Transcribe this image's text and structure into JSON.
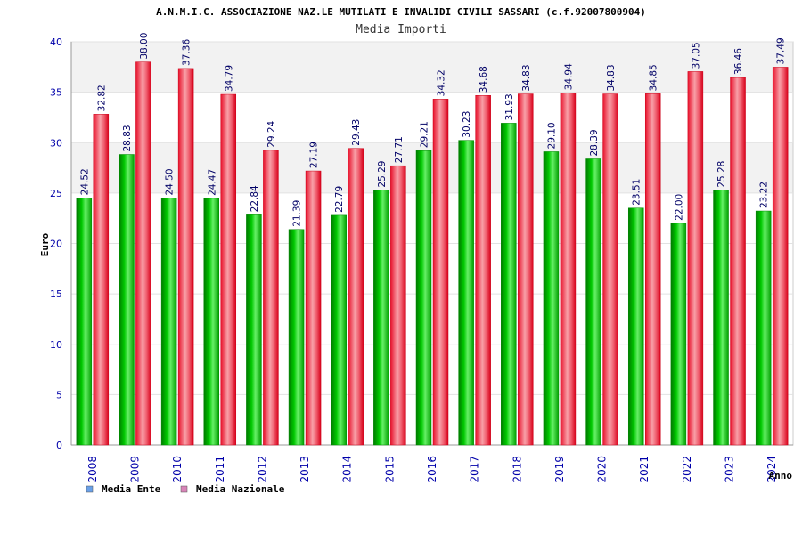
{
  "chart_data": {
    "type": "bar",
    "title": "A.N.M.I.C. ASSOCIAZIONE NAZ.LE MUTILATI E INVALIDI CIVILI SASSARI (c.f.92007800904)",
    "subtitle": "Media Importi",
    "xlabel": "Anno",
    "ylabel": "Euro",
    "ylim": [
      0,
      40
    ],
    "yticks": [
      0,
      5,
      10,
      15,
      20,
      25,
      30,
      35,
      40
    ],
    "categories": [
      "2008",
      "2009",
      "2010",
      "2011",
      "2012",
      "2013",
      "2014",
      "2015",
      "2016",
      "2017",
      "2018",
      "2019",
      "2020",
      "2021",
      "2022",
      "2023",
      "2024"
    ],
    "series": [
      {
        "name": "Media Ente",
        "values": [
          24.52,
          28.83,
          24.5,
          24.47,
          22.84,
          21.39,
          22.79,
          25.29,
          29.21,
          30.23,
          31.93,
          29.1,
          28.39,
          23.51,
          22.0,
          25.28,
          23.22
        ],
        "labels": [
          "24.52",
          "28.83",
          "24.50",
          "24.47",
          "22.84",
          "21.39",
          "22.79",
          "25.29",
          "29.21",
          "30.23",
          "31.93",
          "29.10",
          "28.39",
          "23.51",
          "22.00",
          "25.28",
          "23.22"
        ],
        "color": "#00c000"
      },
      {
        "name": "Media Nazionale",
        "values": [
          32.82,
          38.0,
          37.36,
          34.79,
          29.24,
          27.19,
          29.43,
          27.71,
          34.32,
          34.68,
          34.83,
          34.94,
          34.83,
          34.85,
          37.05,
          36.46,
          37.49
        ],
        "labels": [
          "32.82",
          "38.00",
          "37.36",
          "34.79",
          "29.24",
          "27.19",
          "29.43",
          "27.71",
          "34.32",
          "34.68",
          "34.83",
          "34.94",
          "34.83",
          "34.85",
          "37.05",
          "36.46",
          "37.49"
        ],
        "color": "#e8102a"
      }
    ],
    "grid": true,
    "legend": {
      "placement": "bottom-left",
      "items": [
        {
          "label": "Media Ente",
          "color": "#6aa0e8"
        },
        {
          "label": "Media Nazionale",
          "color": "#d884b8"
        }
      ]
    }
  }
}
